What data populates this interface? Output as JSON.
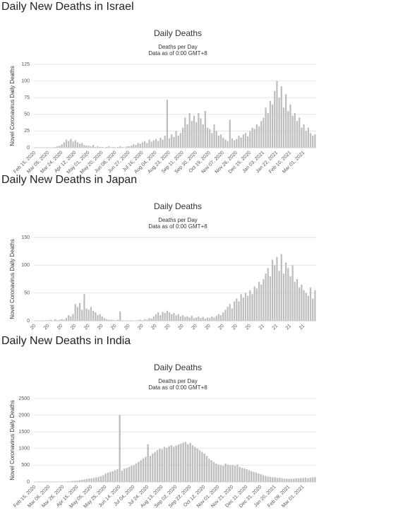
{
  "chart_data": [
    {
      "type": "bar",
      "heading": "Daily New Deaths in Israel",
      "title": "Daily Deaths",
      "subtitle": "Deaths per Day",
      "note": "Data as of 0:00 GMT+8",
      "y_label": "Novel Coronavirus Daily Deaths",
      "color": "#bdbdbd",
      "grid": true,
      "ylim": [
        0,
        125
      ],
      "yticks": [
        0,
        25,
        50,
        75,
        100,
        125
      ],
      "categories": [
        "Feb 15, 2020",
        null,
        null,
        null,
        null,
        null,
        "Mar 05, 2020",
        null,
        null,
        null,
        null,
        null,
        "Mar 24, 2020",
        null,
        null,
        null,
        null,
        null,
        "Apr 12, 2020",
        null,
        null,
        null,
        null,
        null,
        "May 01, 2020",
        null,
        null,
        null,
        null,
        null,
        "May 20, 2020",
        null,
        null,
        null,
        null,
        null,
        "Jun 08, 2020",
        null,
        null,
        null,
        null,
        null,
        "Jun 27, 2020",
        null,
        null,
        null,
        null,
        null,
        "Jul 16, 2020",
        null,
        null,
        null,
        null,
        null,
        "Aug 04, 2020",
        null,
        null,
        null,
        null,
        null,
        "Aug 23, 2020",
        null,
        null,
        null,
        null,
        null,
        "Sep 11, 2020",
        null,
        null,
        null,
        null,
        null,
        "Sep 30, 2020",
        null,
        null,
        null,
        null,
        null,
        "Oct 19, 2020",
        null,
        null,
        null,
        null,
        null,
        "Nov 07, 2020",
        null,
        null,
        null,
        null,
        null,
        "Nov 26, 2020",
        null,
        null,
        null,
        null,
        null,
        "Dec 15, 2020",
        null,
        null,
        null,
        null,
        null,
        "Jan 03, 2021",
        null,
        null,
        null,
        null,
        null,
        "Jan 22, 2021",
        null,
        null,
        null,
        null,
        null,
        "Feb 10, 2021",
        null,
        null,
        null,
        null,
        null,
        "Mar 01, 2021",
        null,
        null,
        null,
        null,
        null
      ],
      "values": [
        0,
        0,
        0,
        0,
        0,
        0,
        0,
        0,
        0,
        1,
        2,
        3,
        5,
        8,
        12,
        10,
        13,
        9,
        11,
        8,
        6,
        7,
        4,
        3,
        3,
        2,
        4,
        1,
        2,
        1,
        1,
        0,
        1,
        2,
        0,
        1,
        0,
        1,
        2,
        1,
        0,
        2,
        2,
        3,
        5,
        4,
        7,
        6,
        8,
        10,
        7,
        12,
        9,
        11,
        13,
        10,
        15,
        12,
        18,
        72,
        14,
        20,
        16,
        25,
        18,
        22,
        30,
        45,
        35,
        52,
        40,
        48,
        38,
        52,
        44,
        35,
        55,
        30,
        28,
        22,
        35,
        25,
        18,
        20,
        15,
        12,
        10,
        42,
        14,
        11,
        13,
        18,
        15,
        20,
        22,
        17,
        25,
        30,
        28,
        35,
        32,
        40,
        45,
        60,
        52,
        70,
        65,
        85,
        100,
        75,
        92,
        60,
        80,
        55,
        65,
        48,
        52,
        40,
        45,
        30,
        35,
        25,
        30,
        22,
        18,
        20
      ]
    },
    {
      "type": "bar",
      "heading": "Daily New Deaths in Japan",
      "title": "Daily Deaths",
      "subtitle": "Deaths per Day",
      "note": "Data as of 0:00 GMT+8",
      "y_label": "Novel Coronavirus Daily Deaths",
      "color": "#bdbdbd",
      "grid": true,
      "ylim": [
        0,
        150
      ],
      "yticks": [
        0,
        50,
        100,
        150
      ],
      "categories": [
        "20",
        null,
        null,
        null,
        null,
        null,
        "20",
        null,
        null,
        null,
        null,
        null,
        "20",
        null,
        null,
        null,
        null,
        null,
        "20",
        null,
        null,
        null,
        null,
        null,
        "20",
        null,
        null,
        null,
        null,
        null,
        "20",
        null,
        null,
        null,
        null,
        null,
        "20",
        null,
        null,
        null,
        null,
        null,
        "20",
        null,
        null,
        null,
        null,
        null,
        "20",
        null,
        null,
        null,
        null,
        null,
        "20",
        null,
        null,
        null,
        null,
        null,
        "20",
        null,
        null,
        null,
        null,
        null,
        "20",
        null,
        null,
        null,
        null,
        null,
        "20",
        null,
        null,
        null,
        null,
        null,
        "20",
        null,
        null,
        null,
        null,
        null,
        "20",
        null,
        null,
        null,
        null,
        null,
        "20",
        null,
        null,
        null,
        null,
        null,
        "20",
        null,
        null,
        null,
        null,
        null,
        "21",
        null,
        null,
        null,
        null,
        null,
        "21",
        null,
        null,
        null,
        null,
        null,
        "21",
        null,
        null,
        null,
        null,
        null,
        "21",
        null,
        null,
        null,
        null,
        null
      ],
      "values": [
        0,
        0,
        0,
        1,
        0,
        1,
        1,
        2,
        0,
        3,
        1,
        2,
        3,
        2,
        5,
        10,
        8,
        12,
        30,
        25,
        32,
        20,
        48,
        22,
        20,
        25,
        18,
        15,
        10,
        12,
        8,
        5,
        3,
        2,
        2,
        1,
        1,
        2,
        17,
        1,
        0,
        1,
        0,
        1,
        0,
        0,
        1,
        2,
        1,
        3,
        2,
        5,
        4,
        8,
        12,
        15,
        10,
        16,
        14,
        18,
        15,
        12,
        14,
        10,
        12,
        8,
        10,
        7,
        8,
        6,
        9,
        5,
        6,
        8,
        5,
        7,
        4,
        6,
        5,
        8,
        6,
        9,
        12,
        10,
        15,
        20,
        25,
        30,
        22,
        35,
        40,
        35,
        48,
        42,
        50,
        45,
        55,
        48,
        62,
        58,
        70,
        65,
        75,
        85,
        95,
        80,
        110,
        100,
        115,
        90,
        120,
        85,
        105,
        95,
        80,
        100,
        70,
        75,
        60,
        65,
        55,
        50,
        45,
        60,
        40,
        55
      ]
    },
    {
      "type": "bar",
      "heading": "Daily New Deaths in India",
      "title": "Daily Deaths",
      "subtitle": "Deaths per Day",
      "note": "Data as of 0:00 GMT+8",
      "y_label": "Novel Coronavirus Daily Deaths",
      "color": "#bdbdbd",
      "grid": true,
      "ylim": [
        0,
        2500
      ],
      "yticks": [
        0,
        500,
        1000,
        1500,
        2000,
        2500
      ],
      "categories": [
        "Feb 15, 2020",
        null,
        null,
        null,
        null,
        null,
        "Mar 06, 2020",
        null,
        null,
        null,
        null,
        null,
        "Mar 26, 2020",
        null,
        null,
        null,
        null,
        null,
        "Apr 15, 2020",
        null,
        null,
        null,
        null,
        null,
        "May 05, 2020",
        null,
        null,
        null,
        null,
        null,
        "May 25, 2020",
        null,
        null,
        null,
        null,
        null,
        "Jun 14, 2020",
        null,
        null,
        null,
        null,
        null,
        "Jul 04, 2020",
        null,
        null,
        null,
        null,
        null,
        "Jul 24, 2020",
        null,
        null,
        null,
        null,
        null,
        "Aug 13, 2020",
        null,
        null,
        null,
        null,
        null,
        "Sep 02, 2020",
        null,
        null,
        null,
        null,
        null,
        "Sep 22, 2020",
        null,
        null,
        null,
        null,
        null,
        "Oct 12, 2020",
        null,
        null,
        null,
        null,
        null,
        "Nov 01, 2020",
        null,
        null,
        null,
        null,
        null,
        "Nov 21, 2020",
        null,
        null,
        null,
        null,
        null,
        "Dec 11, 2020",
        null,
        null,
        null,
        null,
        null,
        "Dec 31, 2020",
        null,
        null,
        null,
        null,
        null,
        "Jan 20, 2021",
        null,
        null,
        null,
        null,
        null,
        "Feb 09, 2021",
        null,
        null,
        null,
        null,
        null,
        "Mar 01, 2021",
        null,
        null,
        null,
        null,
        null
      ],
      "values": [
        0,
        0,
        0,
        0,
        0,
        0,
        0,
        0,
        0,
        1,
        2,
        3,
        5,
        10,
        15,
        20,
        30,
        35,
        40,
        50,
        60,
        75,
        90,
        100,
        110,
        120,
        140,
        150,
        170,
        200,
        250,
        280,
        300,
        320,
        350,
        380,
        2003,
        340,
        400,
        420,
        450,
        480,
        500,
        550,
        600,
        650,
        700,
        750,
        1129,
        780,
        850,
        900,
        950,
        1000,
        980,
        1050,
        1020,
        1070,
        1100,
        1050,
        1090,
        1120,
        1150,
        1180,
        1200,
        1130,
        1170,
        1100,
        1050,
        1000,
        950,
        900,
        850,
        780,
        700,
        650,
        600,
        550,
        520,
        500,
        480,
        550,
        520,
        500,
        510,
        480,
        520,
        450,
        420,
        400,
        380,
        350,
        320,
        300,
        280,
        250,
        230,
        200,
        180,
        160,
        150,
        140,
        140,
        120,
        130,
        110,
        100,
        95,
        90,
        95,
        100,
        110,
        105,
        115,
        120,
        130,
        110,
        125,
        140,
        145
      ]
    }
  ]
}
